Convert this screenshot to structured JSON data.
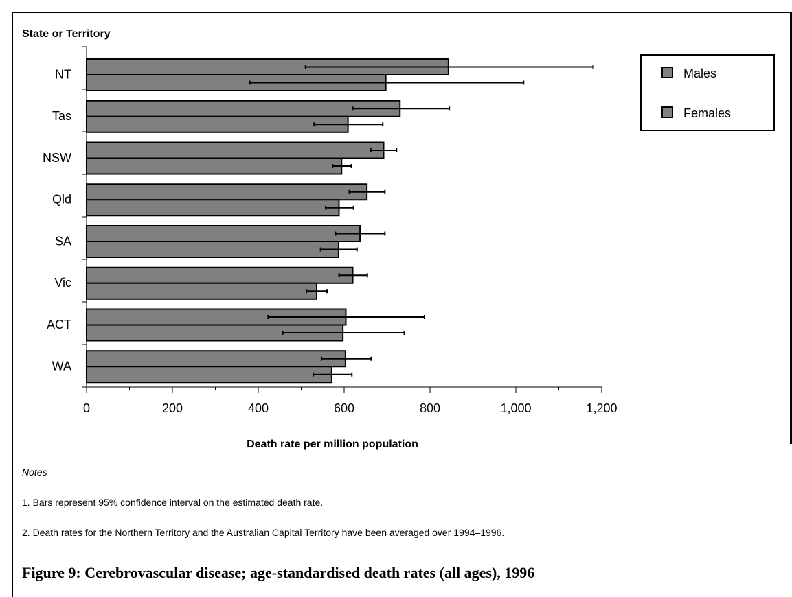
{
  "chart_data": {
    "type": "bar",
    "orientation": "horizontal",
    "title": "",
    "xlabel": "Death rate per million population",
    "ylabel": "State or Territory",
    "categories": [
      "NT",
      "Tas",
      "NSW",
      "Qld",
      "SA",
      "Vic",
      "ACT",
      "WA"
    ],
    "series": [
      {
        "name": "Males",
        "values": [
          843,
          730,
          692,
          653,
          637,
          620,
          604,
          603
        ],
        "ci_low": [
          510,
          620,
          662,
          612,
          580,
          588,
          423,
          547
        ],
        "ci_high": [
          1180,
          845,
          722,
          695,
          695,
          654,
          787,
          663
        ]
      },
      {
        "name": "Females",
        "values": [
          697,
          609,
          594,
          588,
          587,
          536,
          597,
          571
        ],
        "ci_low": [
          380,
          530,
          573,
          557,
          545,
          512,
          457,
          528
        ],
        "ci_high": [
          1018,
          690,
          617,
          622,
          630,
          560,
          740,
          618
        ]
      }
    ],
    "xlim": [
      0,
      1200
    ],
    "xticks": [
      "0",
      "200",
      "400",
      "600",
      "800",
      "1,000",
      "1,200"
    ],
    "legend_position": "top-right",
    "colors": {
      "Males": "#808080",
      "Females": "#808080"
    },
    "grid": false
  },
  "notes": {
    "heading": "Notes",
    "items": [
      "1. Bars represent 95% confidence interval on the estimated death rate.",
      "2. Death rates for the Northern Territory and the Australian Capital Territory have been averaged over 1994–1996."
    ]
  },
  "caption": "Figure 9: Cerebrovascular disease; age-standardised death rates (all ages), 1996"
}
